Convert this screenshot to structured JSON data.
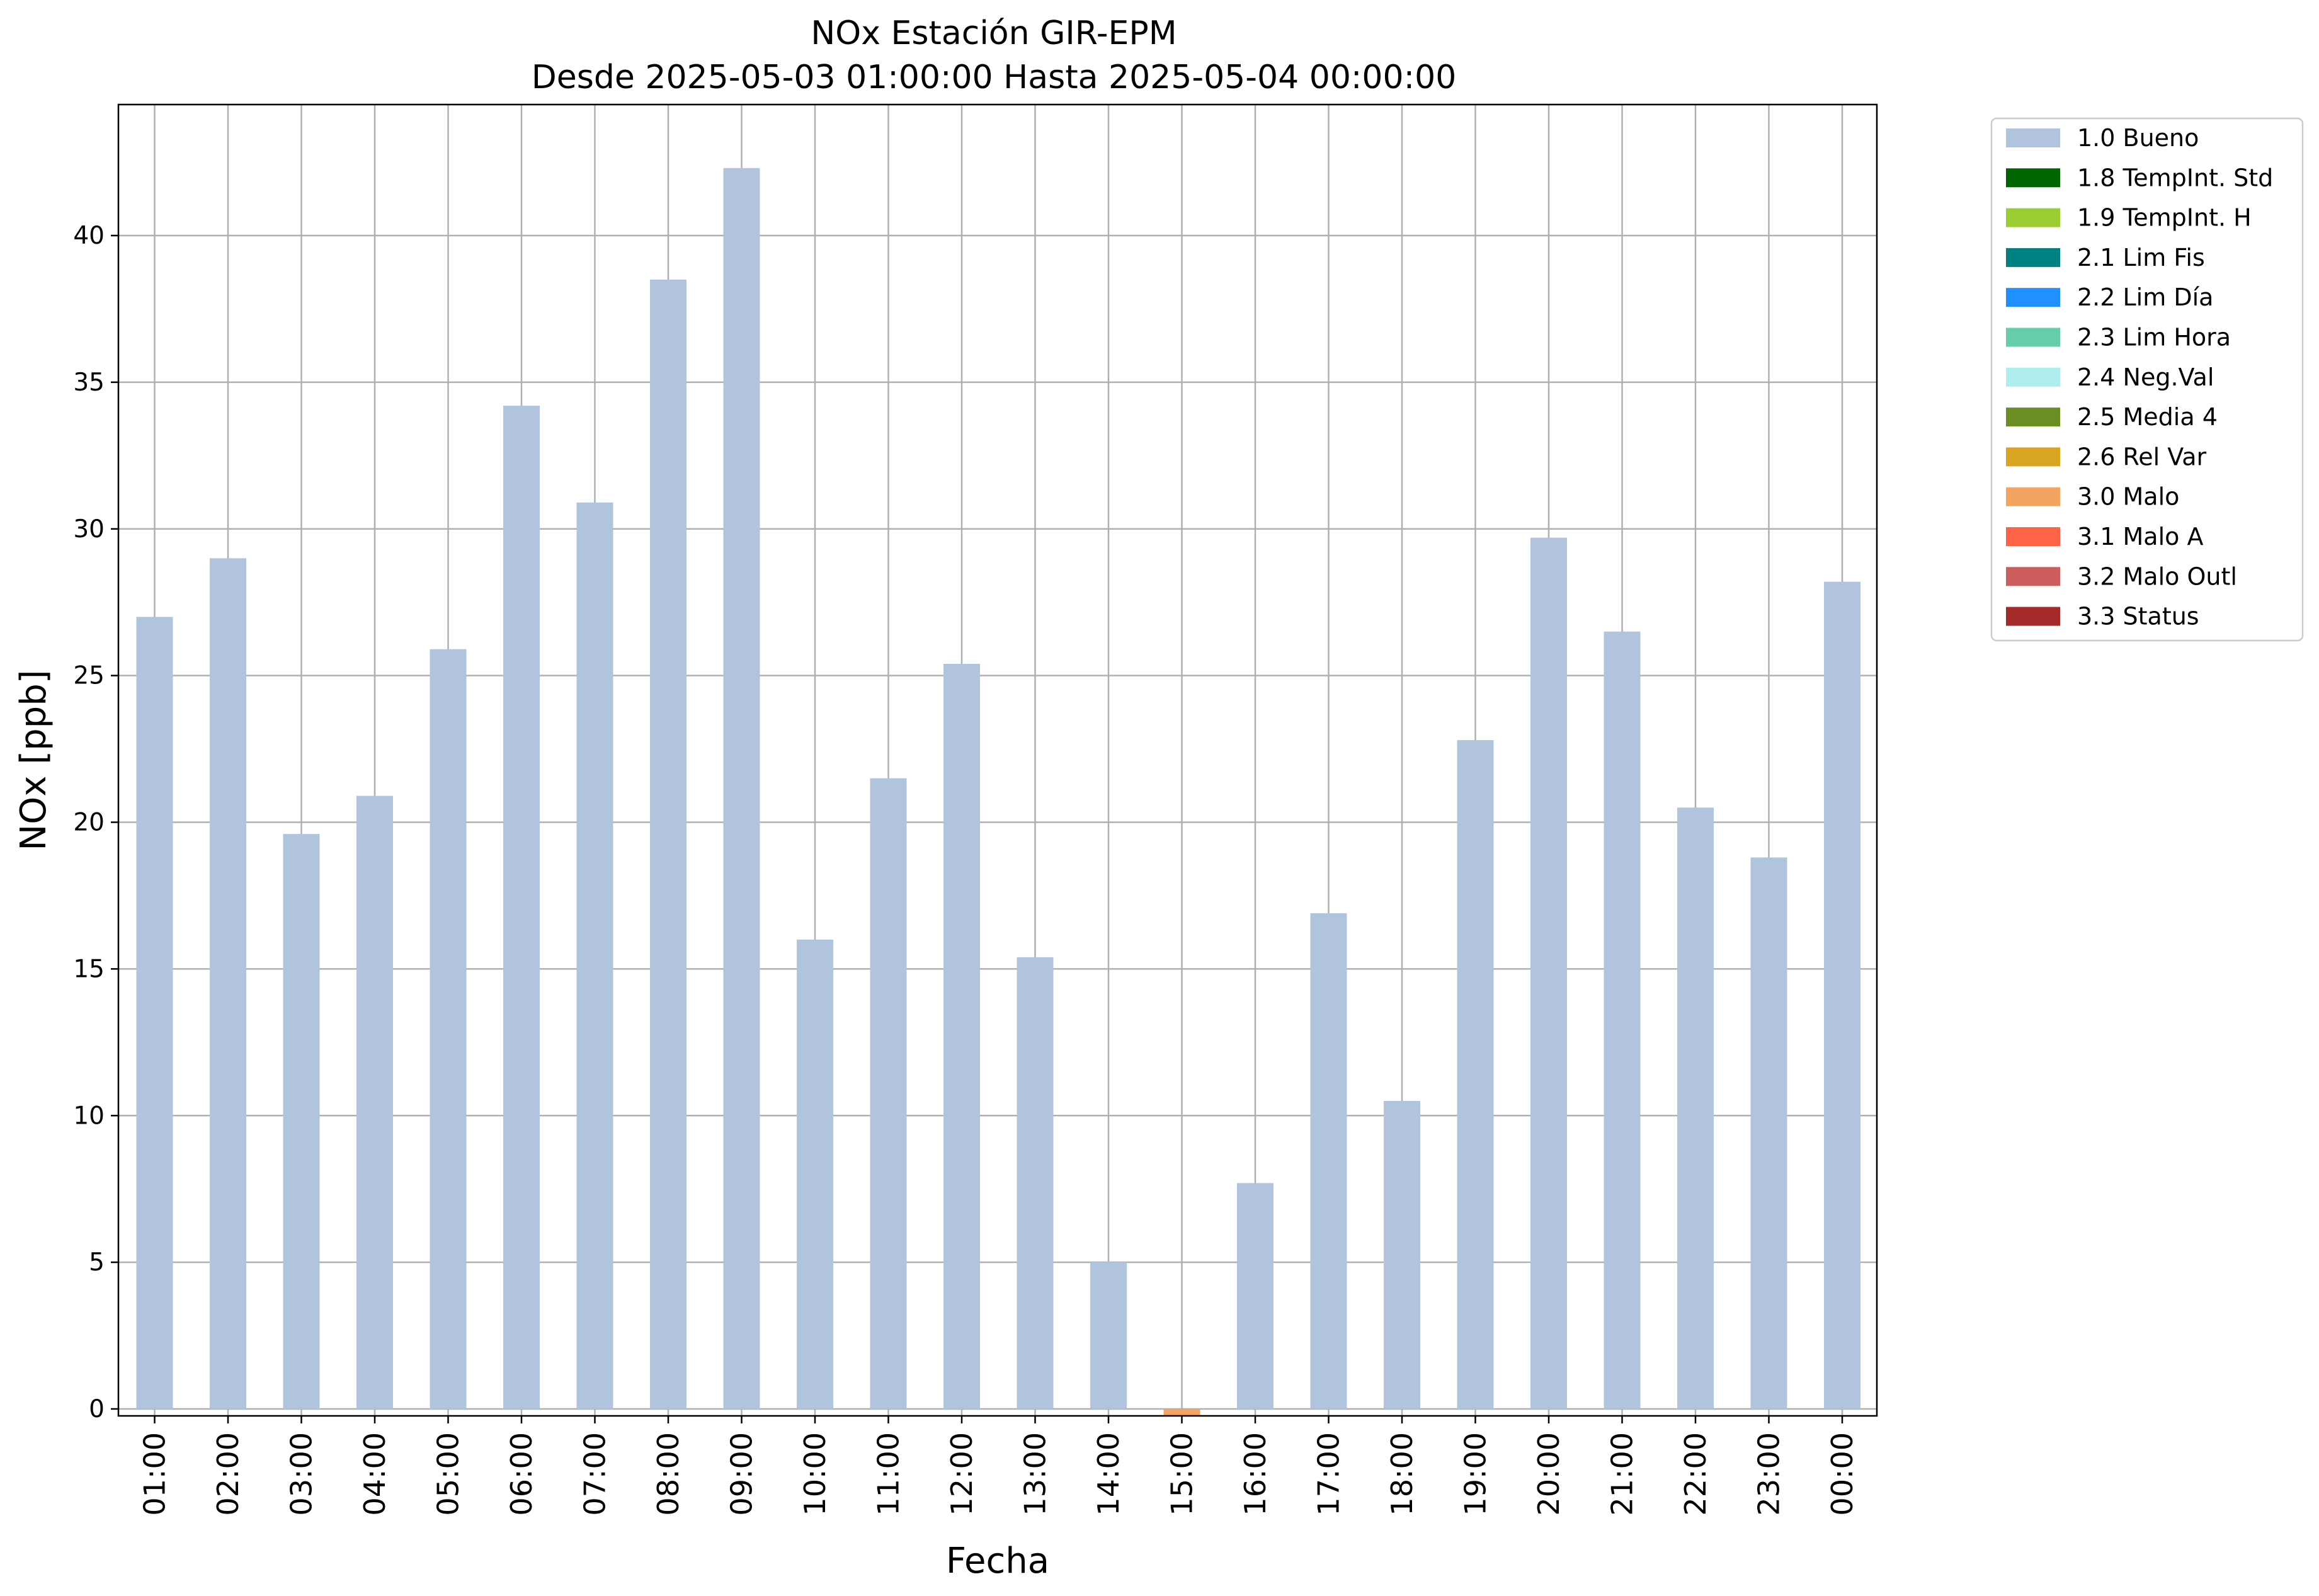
{
  "chart_data": {
    "type": "bar",
    "title": "NOx Estación GIR-EPM",
    "subtitle": "Desde 2025-05-03 01:00:00 Hasta 2025-05-04 00:00:00",
    "xlabel": "Fecha",
    "ylabel": "NOx [ppb]",
    "ylim": [
      -0.3,
      44.5
    ],
    "yticks": [
      0,
      5,
      10,
      15,
      20,
      25,
      30,
      35,
      40
    ],
    "grid": true,
    "legend_position": "outside-right-top",
    "categories": [
      "01:00",
      "02:00",
      "03:00",
      "04:00",
      "05:00",
      "06:00",
      "07:00",
      "08:00",
      "09:00",
      "10:00",
      "11:00",
      "12:00",
      "13:00",
      "14:00",
      "15:00",
      "16:00",
      "17:00",
      "18:00",
      "19:00",
      "20:00",
      "21:00",
      "22:00",
      "23:00",
      "00:00"
    ],
    "values": [
      27.0,
      29.0,
      19.6,
      20.9,
      25.9,
      34.2,
      30.9,
      38.5,
      42.3,
      16.0,
      21.5,
      25.4,
      15.4,
      5.0,
      -0.25,
      7.7,
      16.9,
      10.5,
      22.8,
      29.7,
      26.5,
      20.5,
      18.8,
      28.2
    ],
    "flags": [
      "1.0 Bueno",
      "1.0 Bueno",
      "1.0 Bueno",
      "1.0 Bueno",
      "1.0 Bueno",
      "1.0 Bueno",
      "1.0 Bueno",
      "1.0 Bueno",
      "1.0 Bueno",
      "1.0 Bueno",
      "1.0 Bueno",
      "1.0 Bueno",
      "1.0 Bueno",
      "1.0 Bueno",
      "3.0 Malo",
      "1.0 Bueno",
      "1.0 Bueno",
      "1.0 Bueno",
      "1.0 Bueno",
      "1.0 Bueno",
      "1.0 Bueno",
      "1.0 Bueno",
      "1.0 Bueno",
      "1.0 Bueno"
    ],
    "legend": [
      {
        "name": "1.0 Bueno",
        "color": "#b0c4de"
      },
      {
        "name": "1.8 TempInt. Std",
        "color": "#006400"
      },
      {
        "name": "1.9 TempInt. H",
        "color": "#9acd32"
      },
      {
        "name": "2.1 Lim Fis",
        "color": "#008080"
      },
      {
        "name": "2.2 Lim Día",
        "color": "#1e90ff"
      },
      {
        "name": "2.3 Lim Hora",
        "color": "#66cdaa"
      },
      {
        "name": "2.4 Neg.Val",
        "color": "#afeeee"
      },
      {
        "name": "2.5 Media 4",
        "color": "#6b8e23"
      },
      {
        "name": "2.6 Rel Var",
        "color": "#daa520"
      },
      {
        "name": "3.0 Malo",
        "color": "#f4a460"
      },
      {
        "name": "3.1 Malo A",
        "color": "#ff6347"
      },
      {
        "name": "3.2 Malo Outl",
        "color": "#cd5c5c"
      },
      {
        "name": "3.3 Status",
        "color": "#a52a2a"
      }
    ]
  }
}
